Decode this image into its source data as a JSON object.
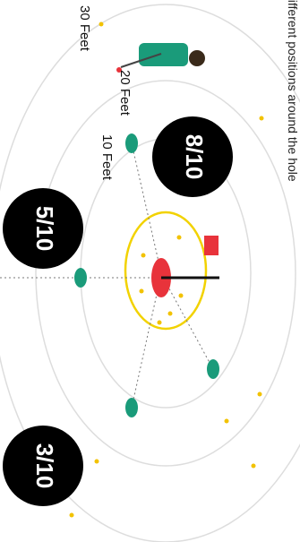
{
  "caption": "different positions around the hole",
  "rings": [
    {
      "label": "10 Feet"
    },
    {
      "label": "20 Feet"
    },
    {
      "label": "30 Feet"
    }
  ],
  "rates": [
    {
      "label": "8/10"
    },
    {
      "label": "5/10"
    },
    {
      "label": "3/10"
    }
  ]
}
